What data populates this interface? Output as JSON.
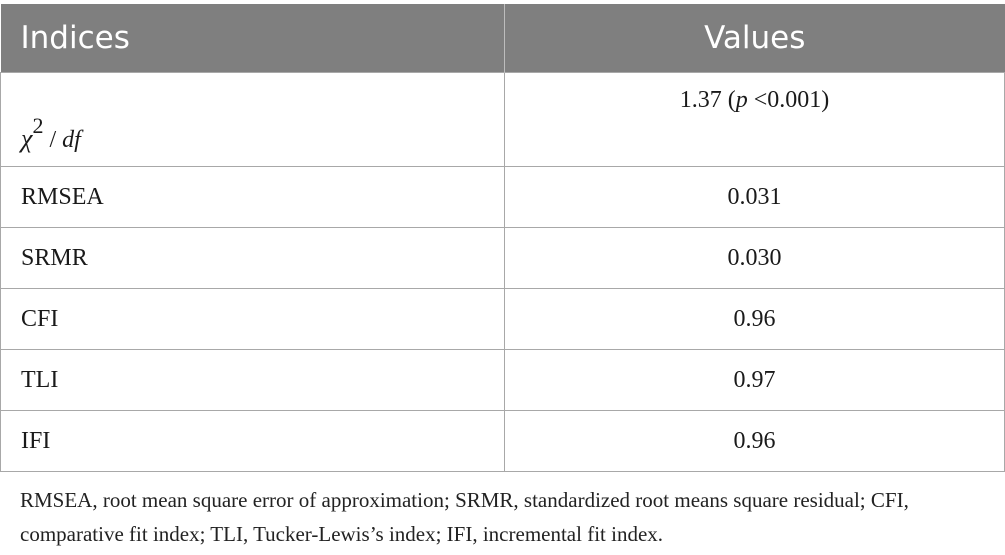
{
  "table": {
    "headers": [
      "Indices",
      "Values"
    ],
    "rows": [
      {
        "index": {
          "symbol": "χ",
          "exponent": "2",
          "divider": "/",
          "denominator": "df"
        },
        "value": {
          "number": "1.37",
          "open": "(",
          "p_symbol": "p",
          "comparator": "<",
          "p_value": "0.001",
          "close": ")"
        }
      },
      {
        "index": "RMSEA",
        "value": "0.031"
      },
      {
        "index": "SRMR",
        "value": "0.030"
      },
      {
        "index": "CFI",
        "value": "0.96"
      },
      {
        "index": "TLI",
        "value": "0.97"
      },
      {
        "index": "IFI",
        "value": "0.96"
      }
    ]
  },
  "footnote": "RMSEA, root mean square error of approximation; SRMR, standardized root means square residual; CFI, comparative fit index; TLI, Tucker-Lewis’s index; IFI, incremental fit index.",
  "colors": {
    "header_bg": "#7f7f7f",
    "header_text": "#ffffff",
    "grid": "#a8a8a8"
  }
}
